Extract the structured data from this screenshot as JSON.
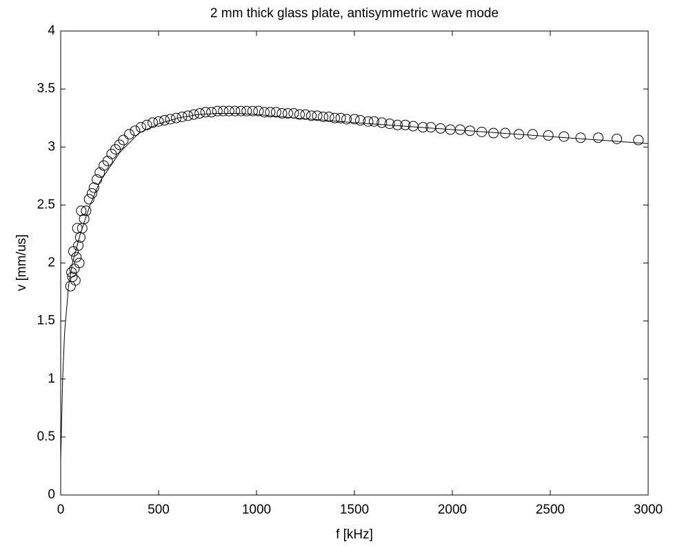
{
  "chart_data": {
    "type": "scatter",
    "title": "2 mm thick glass plate, antisymmetric wave mode",
    "xlabel": "f [kHz]",
    "ylabel": "v [mm/us]",
    "xlim": [
      0,
      3000
    ],
    "ylim": [
      0,
      4
    ],
    "xticks": [
      0,
      500,
      1000,
      1500,
      2000,
      2500,
      3000
    ],
    "yticks": [
      0,
      0.5,
      1,
      1.5,
      2,
      2.5,
      3,
      3.5,
      4
    ],
    "series": [
      {
        "mode": "markers",
        "color": "#000000",
        "x": [
          50,
          55,
          60,
          65,
          70,
          75,
          80,
          85,
          90,
          95,
          100,
          105,
          110,
          120,
          130,
          145,
          160,
          170,
          185,
          200,
          220,
          240,
          260,
          280,
          300,
          320,
          350,
          380,
          410,
          440,
          470,
          500,
          530,
          560,
          590,
          620,
          650,
          680,
          710,
          740,
          770,
          800,
          830,
          860,
          890,
          920,
          950,
          980,
          1010,
          1040,
          1070,
          1100,
          1130,
          1160,
          1190,
          1220,
          1250,
          1280,
          1310,
          1340,
          1370,
          1400,
          1430,
          1460,
          1500,
          1530,
          1570,
          1600,
          1640,
          1680,
          1720,
          1760,
          1800,
          1850,
          1890,
          1940,
          1990,
          2040,
          2090,
          2150,
          2210,
          2270,
          2340,
          2410,
          2490,
          2570,
          2655,
          2745,
          2840,
          2950
        ],
        "values": [
          1.8,
          1.92,
          1.88,
          2.1,
          1.95,
          1.85,
          2.05,
          2.3,
          2.15,
          2.0,
          2.22,
          2.45,
          2.3,
          2.38,
          2.45,
          2.55,
          2.6,
          2.65,
          2.72,
          2.78,
          2.84,
          2.88,
          2.94,
          2.98,
          3.02,
          3.06,
          3.11,
          3.14,
          3.17,
          3.19,
          3.21,
          3.22,
          3.23,
          3.24,
          3.25,
          3.26,
          3.27,
          3.28,
          3.29,
          3.3,
          3.3,
          3.31,
          3.31,
          3.31,
          3.31,
          3.31,
          3.31,
          3.31,
          3.31,
          3.3,
          3.3,
          3.3,
          3.29,
          3.29,
          3.29,
          3.28,
          3.28,
          3.27,
          3.27,
          3.26,
          3.26,
          3.25,
          3.25,
          3.24,
          3.24,
          3.23,
          3.22,
          3.22,
          3.21,
          3.2,
          3.19,
          3.19,
          3.18,
          3.17,
          3.17,
          3.16,
          3.15,
          3.15,
          3.14,
          3.13,
          3.12,
          3.12,
          3.11,
          3.11,
          3.1,
          3.09,
          3.08,
          3.08,
          3.07,
          3.06
        ]
      },
      {
        "mode": "line",
        "color": "#000000",
        "x": [
          0,
          10,
          20,
          40,
          60,
          100,
          150,
          200,
          300,
          400,
          500,
          600,
          700,
          800,
          900,
          1000,
          1200,
          1500,
          2000,
          2500,
          3000
        ],
        "values": [
          0.3,
          1.0,
          1.4,
          1.8,
          2.0,
          2.25,
          2.5,
          2.7,
          2.95,
          3.12,
          3.2,
          3.25,
          3.28,
          3.29,
          3.29,
          3.28,
          3.25,
          3.21,
          3.15,
          3.09,
          3.03
        ]
      }
    ]
  }
}
